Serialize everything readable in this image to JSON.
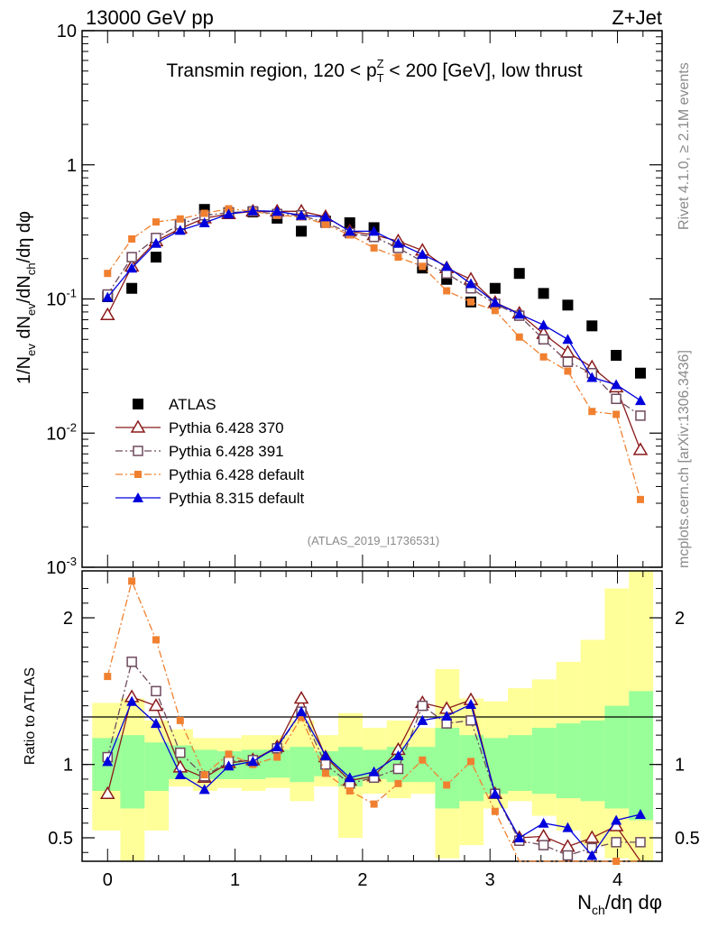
{
  "header": {
    "energy_label": "13000 GeV pp",
    "process_label": "Z+Jet",
    "region_title": "Transmin region, 120 < p",
    "region_title_sup": "Z",
    "region_title_sub": "T",
    "region_title_tail": " < 200 [GeV], low thrust",
    "analysis_id": "(ATLAS_2019_I1736531)",
    "side_label_top": "Rivet 4.1.0, ≥ 2.1M events",
    "side_label_bottom": "mcplots.cern.ch [arXiv:1306.3436]"
  },
  "colors": {
    "ATLAS": "#000000",
    "p370": "#8b1a1a",
    "p391": "#6e4a5e",
    "pdef": "#f08030",
    "p8": "#0000dd",
    "band_outer": "#ffff99",
    "band_inner": "#99ff99"
  },
  "chart_data": [
    {
      "type": "line",
      "panel": "main",
      "scale": "log",
      "ylabel": "1/N_ev dN_ev/dN_ch/dη dφ",
      "ylim": [
        0.001,
        10
      ],
      "xlim": [
        -0.2,
        4.35
      ],
      "y_tick_labels": [
        "10^-3",
        "10^-2",
        "10^-1",
        "1",
        "10"
      ],
      "x": [
        0,
        0.19,
        0.38,
        0.57,
        0.76,
        0.95,
        1.14,
        1.33,
        1.52,
        1.71,
        1.9,
        2.09,
        2.28,
        2.47,
        2.66,
        2.85,
        3.04,
        3.23,
        3.42,
        3.61,
        3.8,
        3.99,
        4.18
      ],
      "series": [
        {
          "name": "ATLAS",
          "key": "ATLAS",
          "marker": "square-filled",
          "dash": "none",
          "values": [
            0.104,
            0.12,
            0.205,
            0.36,
            0.465,
            0.44,
            0.445,
            0.4,
            0.32,
            0.38,
            0.37,
            0.34,
            0.245,
            0.17,
            0.14,
            0.095,
            0.12,
            0.155,
            0.11,
            0.09,
            0.063,
            0.038,
            0.028
          ]
        },
        {
          "name": "Pythia 6.428 370",
          "key": "p370",
          "marker": "triangle-open",
          "dash": "solid",
          "values": [
            0.076,
            0.175,
            0.27,
            0.335,
            0.4,
            0.43,
            0.45,
            0.45,
            0.45,
            0.41,
            0.32,
            0.3,
            0.27,
            0.23,
            0.17,
            0.14,
            0.094,
            0.078,
            0.055,
            0.04,
            0.031,
            0.022,
            0.0075
          ]
        },
        {
          "name": "Pythia 6.428 391",
          "key": "p391",
          "marker": "square-open",
          "dash": "dashdot",
          "values": [
            0.108,
            0.205,
            0.285,
            0.36,
            0.42,
            0.44,
            0.45,
            0.43,
            0.42,
            0.37,
            0.31,
            0.29,
            0.24,
            0.19,
            0.155,
            0.12,
            0.092,
            0.075,
            0.05,
            0.034,
            0.028,
            0.018,
            0.0135
          ]
        },
        {
          "name": "Pythia 6.428 default",
          "key": "pdef",
          "marker": "square-filled-small",
          "dash": "dashdot",
          "values": [
            0.155,
            0.28,
            0.375,
            0.395,
            0.435,
            0.47,
            0.45,
            0.42,
            0.41,
            0.36,
            0.3,
            0.24,
            0.205,
            0.175,
            0.115,
            0.095,
            0.082,
            0.052,
            0.037,
            0.029,
            0.0145,
            0.0138,
            0.0032
          ]
        },
        {
          "name": "Pythia 8.315 default",
          "key": "p8",
          "marker": "triangle-filled",
          "dash": "solid",
          "values": [
            0.103,
            0.17,
            0.26,
            0.325,
            0.37,
            0.43,
            0.455,
            0.45,
            0.42,
            0.41,
            0.32,
            0.32,
            0.26,
            0.215,
            0.175,
            0.13,
            0.094,
            0.077,
            0.064,
            0.05,
            0.026,
            0.023,
            0.0175
          ]
        }
      ]
    },
    {
      "type": "line",
      "panel": "ratio",
      "ylabel": "Ratio to ATLAS",
      "ylim": [
        0.34,
        2.32
      ],
      "xlim": [
        -0.2,
        4.35
      ],
      "xlabel": "N_ch/dη dφ",
      "x_ticks": [
        0,
        1,
        2,
        3,
        4
      ],
      "x_tick_labels": [
        "0",
        "1",
        "2",
        "3",
        "4"
      ],
      "y_ticks": [
        0.5,
        1,
        2
      ],
      "y_tick_labels": [
        "0.5",
        "1",
        "2"
      ],
      "x": [
        0,
        0.19,
        0.38,
        0.57,
        0.76,
        0.95,
        1.14,
        1.33,
        1.52,
        1.71,
        1.9,
        2.09,
        2.28,
        2.47,
        2.66,
        2.85,
        3.04,
        3.23,
        3.42,
        3.61,
        3.8,
        3.99,
        4.18
      ],
      "band_outer": [
        {
          "x0": -0.12,
          "x1": 0.1,
          "lo": 0.55,
          "hi": 1.42
        },
        {
          "x0": 0.1,
          "x1": 0.29,
          "lo": 0.34,
          "hi": 1.45
        },
        {
          "x0": 0.29,
          "x1": 0.48,
          "lo": 0.55,
          "hi": 1.3
        },
        {
          "x0": 0.48,
          "x1": 0.67,
          "lo": 0.85,
          "hi": 1.24
        },
        {
          "x0": 0.67,
          "x1": 0.86,
          "lo": 0.82,
          "hi": 1.18
        },
        {
          "x0": 0.86,
          "x1": 1.05,
          "lo": 0.84,
          "hi": 1.18
        },
        {
          "x0": 1.05,
          "x1": 1.24,
          "lo": 0.82,
          "hi": 1.2
        },
        {
          "x0": 1.24,
          "x1": 1.43,
          "lo": 0.84,
          "hi": 1.2
        },
        {
          "x0": 1.43,
          "x1": 1.62,
          "lo": 0.75,
          "hi": 1.3
        },
        {
          "x0": 1.62,
          "x1": 1.81,
          "lo": 0.85,
          "hi": 1.2
        },
        {
          "x0": 1.81,
          "x1": 2.0,
          "lo": 0.5,
          "hi": 1.35
        },
        {
          "x0": 2.0,
          "x1": 2.19,
          "lo": 0.8,
          "hi": 1.25
        },
        {
          "x0": 2.19,
          "x1": 2.38,
          "lo": 0.77,
          "hi": 1.3
        },
        {
          "x0": 2.38,
          "x1": 2.57,
          "lo": 0.8,
          "hi": 1.25
        },
        {
          "x0": 2.57,
          "x1": 2.76,
          "lo": 0.36,
          "hi": 1.65
        },
        {
          "x0": 2.76,
          "x1": 2.95,
          "lo": 0.45,
          "hi": 1.45
        },
        {
          "x0": 2.95,
          "x1": 3.14,
          "lo": 0.7,
          "hi": 1.43
        },
        {
          "x0": 3.14,
          "x1": 3.33,
          "lo": 0.75,
          "hi": 1.52
        },
        {
          "x0": 3.33,
          "x1": 3.52,
          "lo": 0.65,
          "hi": 1.58
        },
        {
          "x0": 3.52,
          "x1": 3.71,
          "lo": 0.55,
          "hi": 1.7
        },
        {
          "x0": 3.71,
          "x1": 3.9,
          "lo": 0.45,
          "hi": 1.85
        },
        {
          "x0": 3.9,
          "x1": 4.09,
          "lo": 0.36,
          "hi": 2.2
        },
        {
          "x0": 4.09,
          "x1": 4.28,
          "lo": 0.34,
          "hi": 2.32
        }
      ],
      "band_inner": [
        {
          "x0": -0.12,
          "x1": 0.1,
          "lo": 0.82,
          "hi": 1.18
        },
        {
          "x0": 0.1,
          "x1": 0.29,
          "lo": 0.7,
          "hi": 1.2
        },
        {
          "x0": 0.29,
          "x1": 0.48,
          "lo": 0.82,
          "hi": 1.15
        },
        {
          "x0": 0.48,
          "x1": 0.67,
          "lo": 0.9,
          "hi": 1.13
        },
        {
          "x0": 0.67,
          "x1": 0.86,
          "lo": 0.9,
          "hi": 1.1
        },
        {
          "x0": 0.86,
          "x1": 1.05,
          "lo": 0.9,
          "hi": 1.09
        },
        {
          "x0": 1.05,
          "x1": 1.24,
          "lo": 0.9,
          "hi": 1.1
        },
        {
          "x0": 1.24,
          "x1": 1.43,
          "lo": 0.91,
          "hi": 1.1
        },
        {
          "x0": 1.43,
          "x1": 1.62,
          "lo": 0.88,
          "hi": 1.12
        },
        {
          "x0": 1.62,
          "x1": 1.81,
          "lo": 0.92,
          "hi": 1.09
        },
        {
          "x0": 1.81,
          "x1": 2.0,
          "lo": 0.85,
          "hi": 1.12
        },
        {
          "x0": 2.0,
          "x1": 2.19,
          "lo": 0.9,
          "hi": 1.1
        },
        {
          "x0": 2.19,
          "x1": 2.38,
          "lo": 0.88,
          "hi": 1.12
        },
        {
          "x0": 2.38,
          "x1": 2.57,
          "lo": 0.88,
          "hi": 1.12
        },
        {
          "x0": 2.57,
          "x1": 2.76,
          "lo": 0.7,
          "hi": 1.25
        },
        {
          "x0": 2.76,
          "x1": 2.95,
          "lo": 0.75,
          "hi": 1.2
        },
        {
          "x0": 2.95,
          "x1": 3.14,
          "lo": 0.8,
          "hi": 1.18
        },
        {
          "x0": 3.14,
          "x1": 3.33,
          "lo": 0.82,
          "hi": 1.2
        },
        {
          "x0": 3.33,
          "x1": 3.52,
          "lo": 0.8,
          "hi": 1.25
        },
        {
          "x0": 3.52,
          "x1": 3.71,
          "lo": 0.77,
          "hi": 1.28
        },
        {
          "x0": 3.71,
          "x1": 3.9,
          "lo": 0.75,
          "hi": 1.3
        },
        {
          "x0": 3.9,
          "x1": 4.09,
          "lo": 0.7,
          "hi": 1.4
        },
        {
          "x0": 4.09,
          "x1": 4.28,
          "lo": 0.62,
          "hi": 1.5
        }
      ],
      "series": [
        {
          "name": "Pythia 6.428 370",
          "key": "p370",
          "marker": "triangle-open",
          "dash": "solid",
          "values": [
            0.8,
            1.46,
            1.4,
            0.98,
            0.91,
            1.01,
            1.03,
            1.12,
            1.45,
            1.05,
            0.89,
            0.92,
            1.1,
            1.42,
            1.38,
            1.44,
            0.8,
            0.5,
            0.51,
            0.44,
            0.5,
            0.58,
            0.27
          ]
        },
        {
          "name": "Pythia 6.428 391",
          "key": "p391",
          "marker": "square-open",
          "dash": "dashdot",
          "values": [
            1.05,
            1.7,
            1.5,
            1.08,
            0.92,
            1.02,
            1.03,
            1.11,
            1.36,
            1.0,
            0.87,
            0.91,
            0.97,
            1.4,
            1.28,
            1.3,
            0.8,
            0.48,
            0.45,
            0.38,
            0.43,
            0.47,
            0.47
          ]
        },
        {
          "name": "Pythia 6.428 default",
          "key": "pdef",
          "marker": "square-filled-small",
          "dash": "dashdot",
          "values": [
            1.6,
            2.25,
            1.85,
            1.3,
            0.93,
            1.07,
            1.0,
            1.05,
            1.32,
            0.94,
            0.82,
            0.73,
            0.87,
            1.03,
            0.86,
            1.02,
            0.68,
            0.33,
            0.33,
            0.32,
            0.22,
            0.34,
            0.12
          ]
        },
        {
          "name": "Pythia 8.315 default",
          "key": "p8",
          "marker": "triangle-filled",
          "dash": "solid",
          "values": [
            1.02,
            1.43,
            1.28,
            0.93,
            0.83,
            0.99,
            1.02,
            1.12,
            1.36,
            1.06,
            0.91,
            0.95,
            1.06,
            1.3,
            1.33,
            1.41,
            0.8,
            0.5,
            0.6,
            0.57,
            0.38,
            0.62,
            0.66
          ]
        }
      ]
    }
  ]
}
